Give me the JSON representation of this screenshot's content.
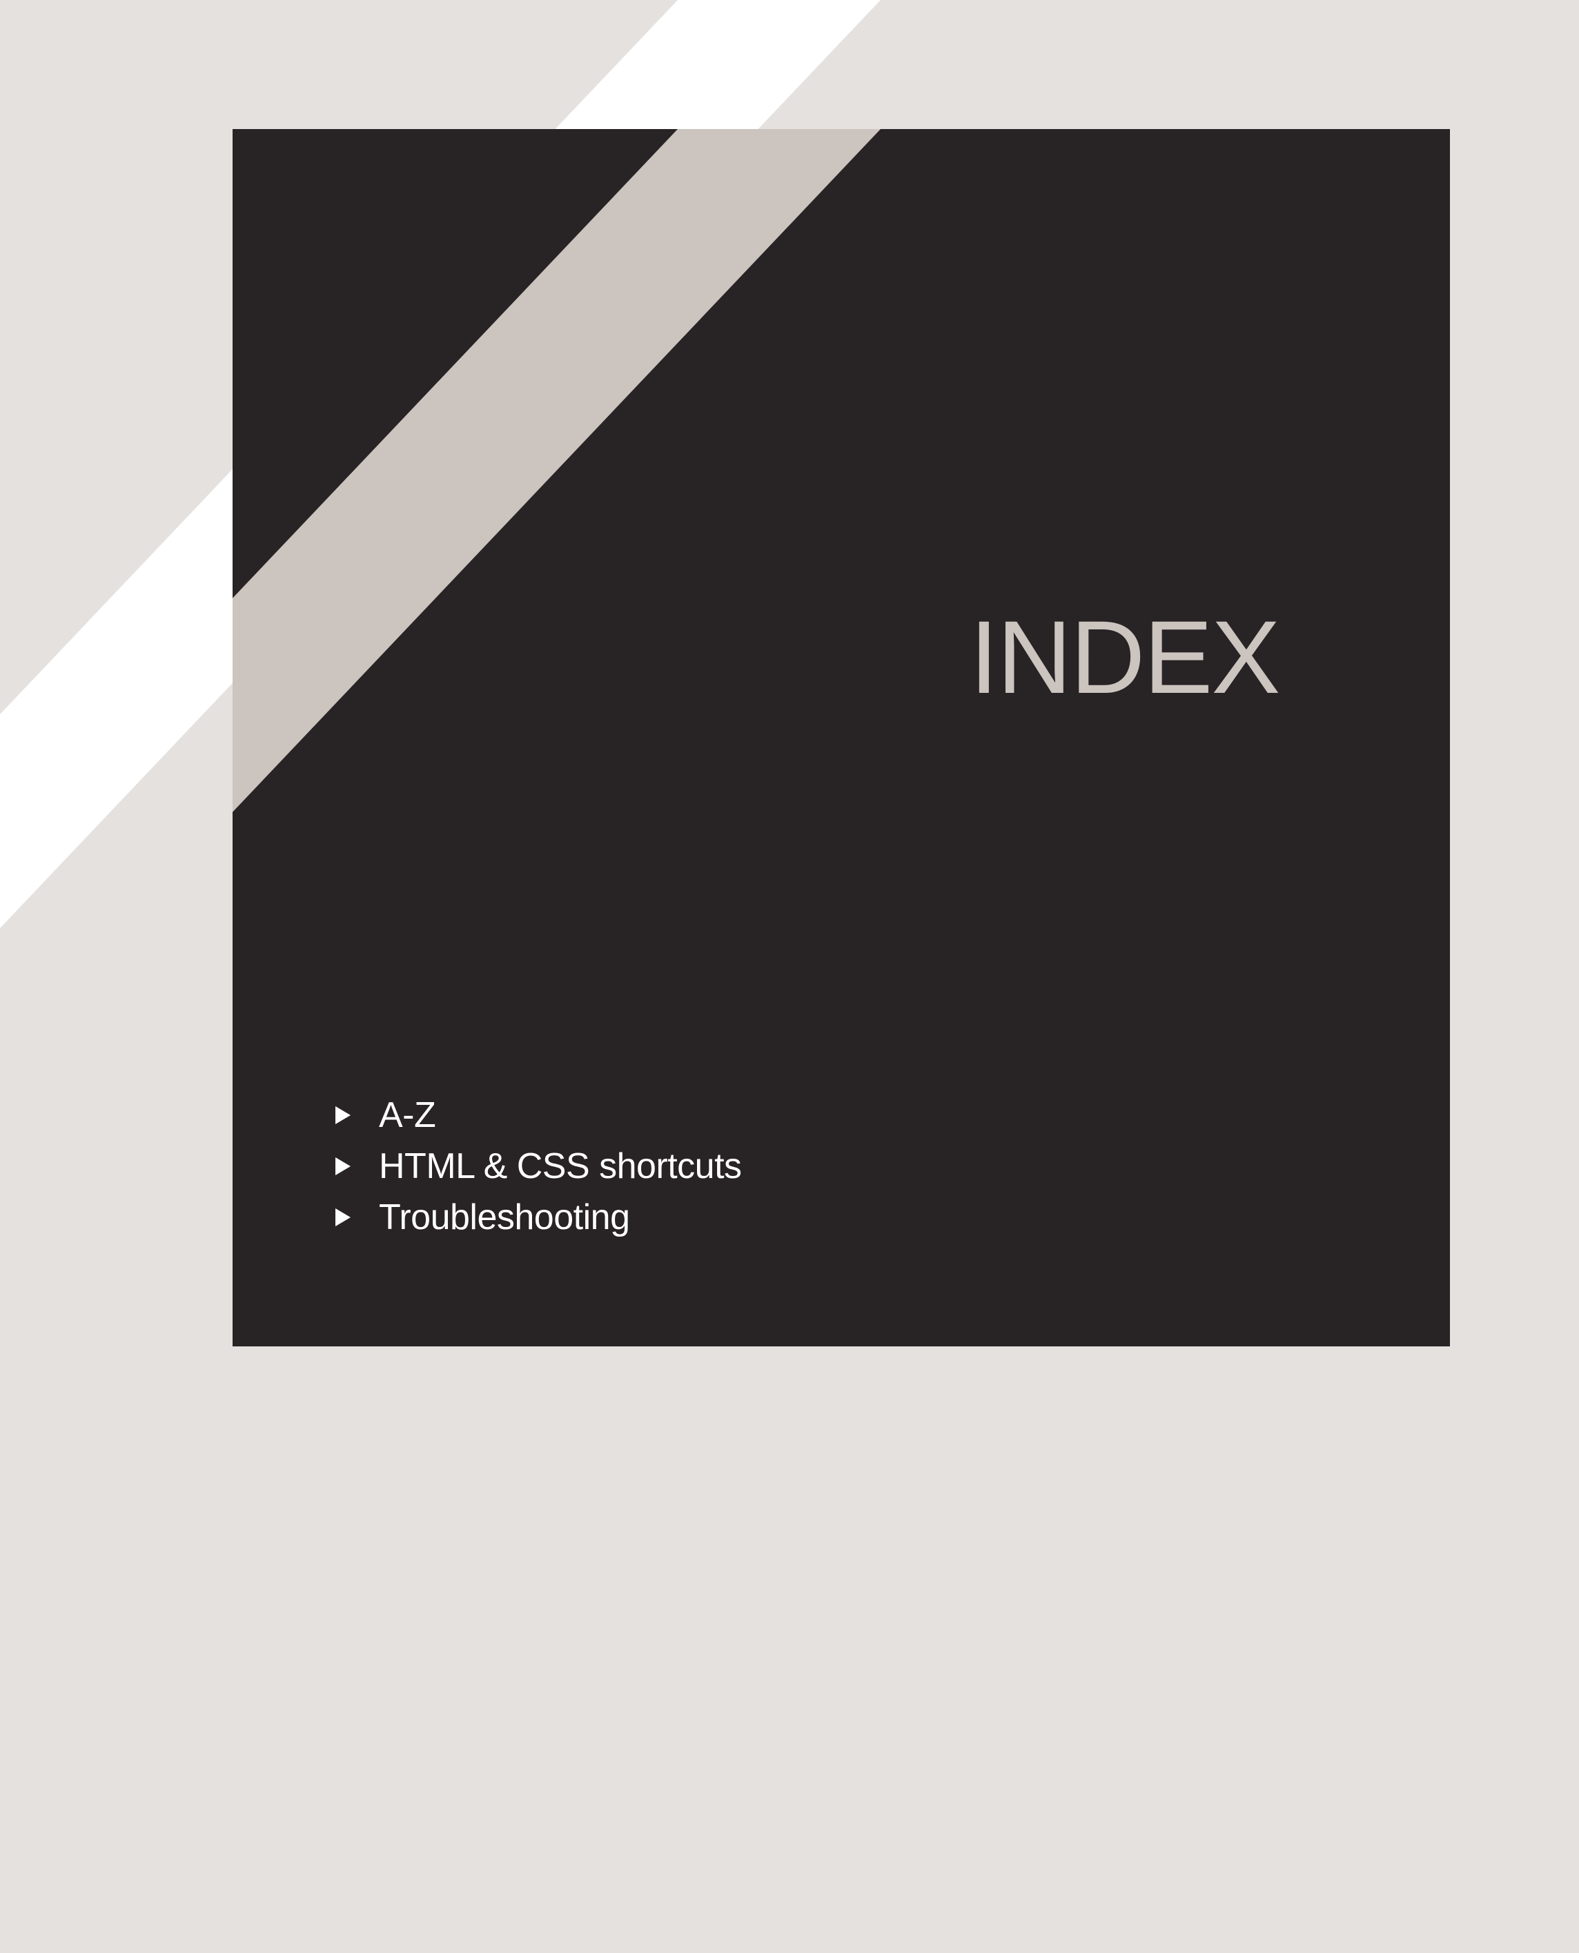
{
  "colors": {
    "page_background": "#e4e1de",
    "panel_background": "#282325",
    "stripe_outside_panel": "#ffffff",
    "stripe_inside_panel": "#cbc4bf",
    "title_color": "#cbc4bf",
    "list_text_color": "#ffffff"
  },
  "panel": {
    "title": "INDEX"
  },
  "contents": {
    "items": [
      {
        "label": "A-Z",
        "icon": "play-arrow-icon"
      },
      {
        "label": "HTML & CSS shortcuts",
        "icon": "play-arrow-icon"
      },
      {
        "label": "Troubleshooting",
        "icon": "play-arrow-icon"
      }
    ]
  }
}
